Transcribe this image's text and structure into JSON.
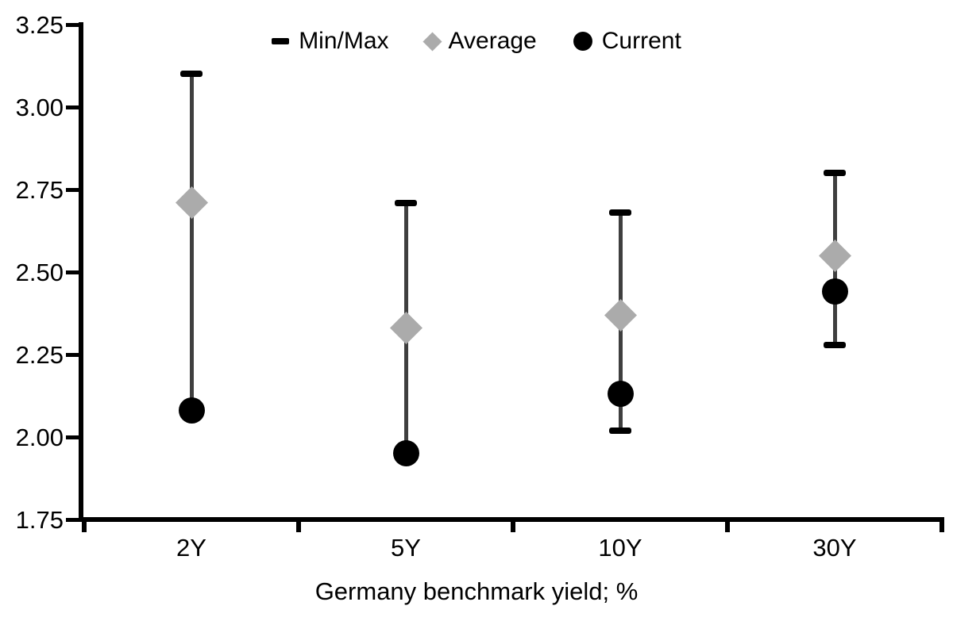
{
  "colors": {
    "marker_black": "#000000",
    "average_gray": "#ababab",
    "error_line_gray": "#3f3f3f",
    "background": "#ffffff"
  },
  "chart_data": {
    "type": "scatter",
    "subtype": "min-max-range-with-average-and-current",
    "title": "",
    "xlabel": "Germany benchmark yield; %",
    "ylabel": "",
    "categories": [
      "2Y",
      "5Y",
      "10Y",
      "30Y"
    ],
    "ylim": [
      1.75,
      3.25
    ],
    "y_ticks": [
      3.25,
      3.0,
      2.75,
      2.5,
      2.25,
      2.0,
      1.75
    ],
    "grid": false,
    "legend": {
      "position": "top-center",
      "items": [
        {
          "label": "Min/Max",
          "marker": "dash",
          "color": "#000000"
        },
        {
          "label": "Average",
          "marker": "diamond",
          "color": "#ababab"
        },
        {
          "label": "Current",
          "marker": "circle",
          "color": "#000000"
        }
      ]
    },
    "series": [
      {
        "name": "Min/Max",
        "type": "range",
        "min": [
          2.08,
          1.95,
          2.02,
          2.28
        ],
        "max": [
          3.1,
          2.71,
          2.68,
          2.8
        ]
      },
      {
        "name": "Average",
        "type": "point",
        "marker": "diamond",
        "values": [
          2.71,
          2.33,
          2.37,
          2.55
        ]
      },
      {
        "name": "Current",
        "type": "point",
        "marker": "circle",
        "values": [
          2.08,
          1.95,
          2.13,
          2.44
        ]
      }
    ]
  }
}
